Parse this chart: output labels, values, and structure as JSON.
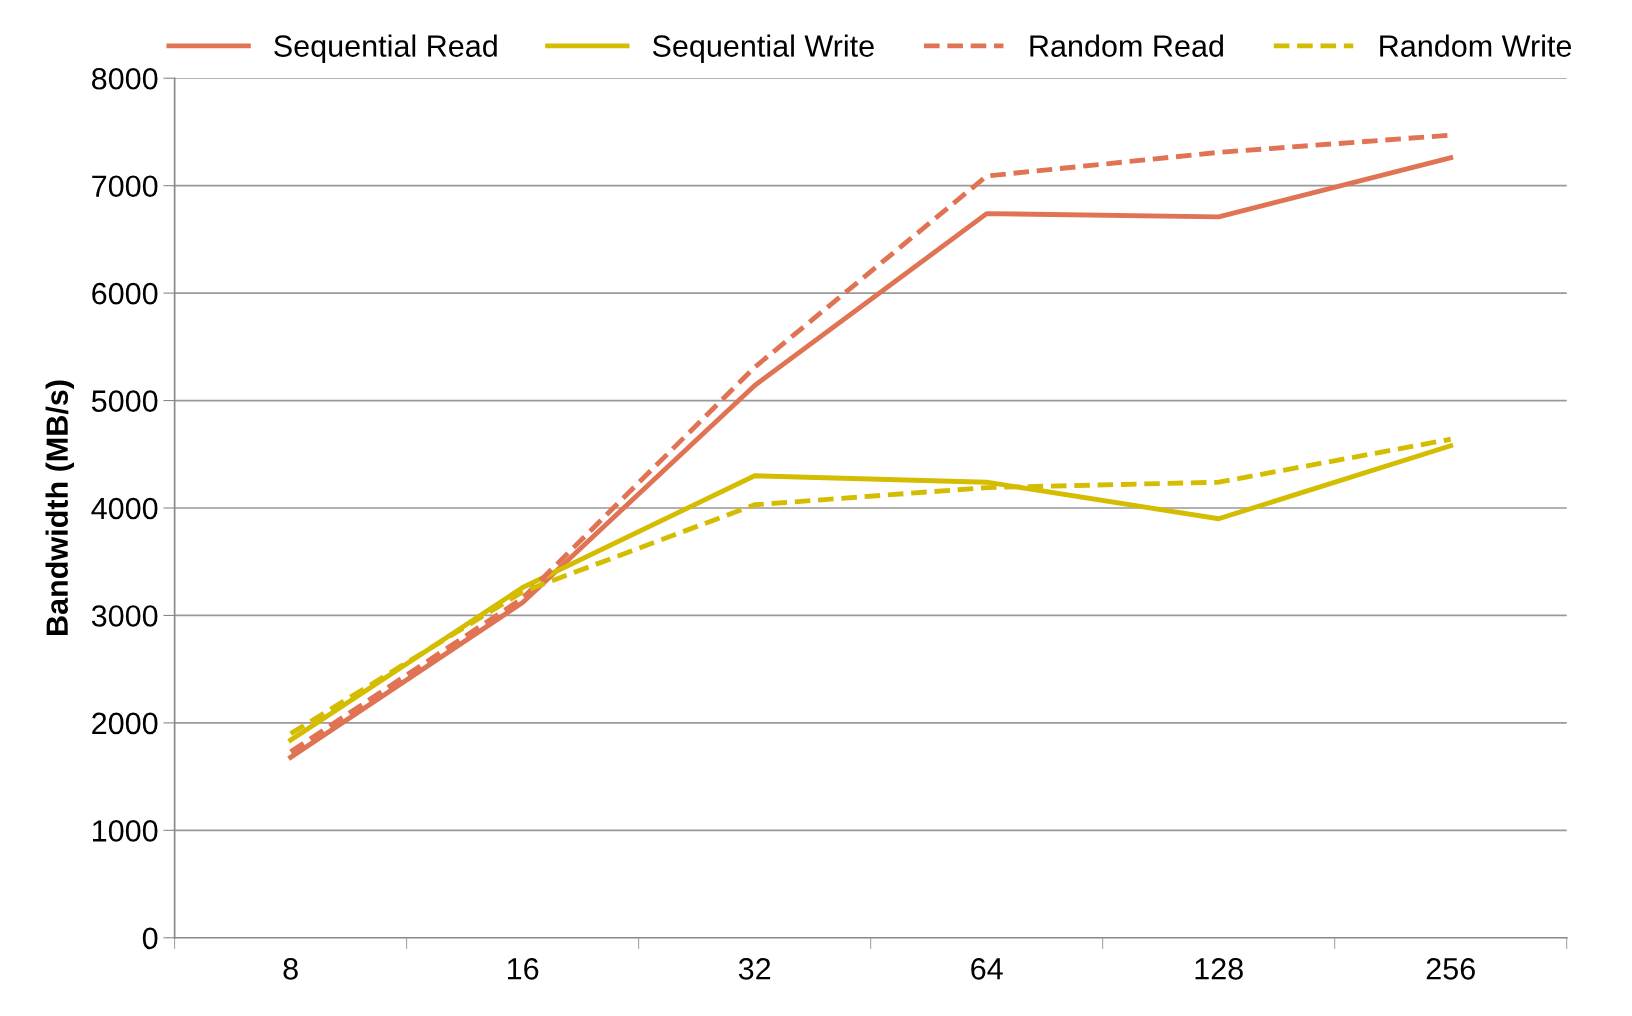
{
  "chart_data": {
    "type": "line",
    "ylabel": "Bandwidth (MB/s)",
    "categories": [
      "8",
      "16",
      "32",
      "64",
      "128",
      "256"
    ],
    "series": [
      {
        "name": "Sequential Read",
        "color": "#e07354",
        "line_style": "solid",
        "values": [
          1680,
          3120,
          5140,
          6740,
          6710,
          7260
        ]
      },
      {
        "name": "Sequential Write",
        "color": "#d4bd00",
        "line_style": "solid",
        "values": [
          1840,
          3260,
          4300,
          4240,
          3900,
          4580
        ]
      },
      {
        "name": "Random Read",
        "color": "#e07354",
        "line_style": "dashed",
        "values": [
          1730,
          3160,
          5310,
          7090,
          7310,
          7470
        ]
      },
      {
        "name": "Random Write",
        "color": "#d4bd00",
        "line_style": "dashed",
        "values": [
          1900,
          3220,
          4030,
          4190,
          4240,
          4640
        ]
      }
    ],
    "ylim": [
      0,
      8000
    ],
    "yticks": [
      0,
      1000,
      2000,
      3000,
      4000,
      5000,
      6000,
      7000,
      8000
    ],
    "grid": "y",
    "legend": "top",
    "marker": "none"
  }
}
